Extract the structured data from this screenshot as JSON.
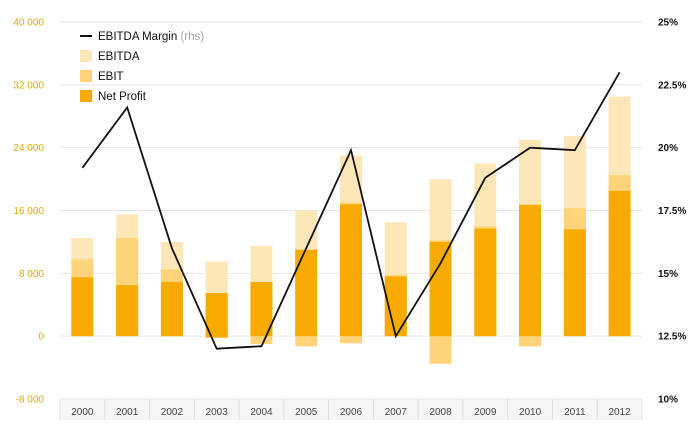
{
  "chart_data": {
    "type": "bar",
    "categories": [
      "2000",
      "2001",
      "2002",
      "2003",
      "2004",
      "2005",
      "2006",
      "2007",
      "2008",
      "2009",
      "2010",
      "2011",
      "2012"
    ],
    "series": [
      {
        "name": "EBITDA",
        "type": "stacked-bar-layer",
        "values": [
          12500,
          15500,
          12000,
          9500,
          11500,
          16000,
          23000,
          14500,
          20000,
          22000,
          25000,
          25500,
          30500
        ],
        "negative_values": [
          0,
          0,
          0,
          0,
          -1000,
          -1300,
          -900,
          0,
          -3500,
          0,
          -1300,
          0,
          0
        ],
        "color": "#fde7b8"
      },
      {
        "name": "EBIT",
        "type": "stacked-bar-layer",
        "values": [
          9800,
          12500,
          8500,
          5200,
          6400,
          11000,
          17000,
          7800,
          12200,
          14000,
          16800,
          16300,
          20500
        ],
        "negative_values": [
          0,
          0,
          0,
          0,
          -1000,
          -1300,
          -900,
          0,
          -3500,
          0,
          -1300,
          0,
          0
        ],
        "color": "#fdd47a"
      },
      {
        "name": "Net Profit",
        "type": "stacked-bar-layer",
        "values": [
          7500,
          6500,
          6900,
          5500,
          6900,
          11000,
          16800,
          7600,
          12000,
          13700,
          16700,
          13600,
          18500
        ],
        "negative_values": [
          0,
          0,
          0,
          -200,
          0,
          0,
          0,
          0,
          0,
          0,
          0,
          0,
          0
        ],
        "color": "#f7ab00"
      },
      {
        "name": "EBITDA Margin",
        "name_suffix": "(rhs)",
        "type": "line",
        "axis": "right",
        "values": [
          19.2,
          21.6,
          16.0,
          12.0,
          12.1,
          16.0,
          19.9,
          12.5,
          15.4,
          18.8,
          20.0,
          19.9,
          23.0
        ],
        "color": "#111111"
      }
    ],
    "y_left": {
      "ylim": [
        -8000,
        40000
      ],
      "ticks": [
        -8000,
        0,
        8000,
        16000,
        24000,
        32000,
        40000
      ],
      "tick_labels": [
        "-8 000",
        "0",
        "8 000",
        "16 000",
        "24 000",
        "32 000",
        "40 000"
      ],
      "label_color": "#e0a800"
    },
    "y_right": {
      "ylim": [
        10,
        25
      ],
      "ticks": [
        10,
        12.5,
        15,
        17.5,
        20,
        22.5,
        25
      ],
      "tick_labels": [
        "10%",
        "12.5%",
        "15%",
        "17.5%",
        "20%",
        "22.5%",
        "25%"
      ]
    },
    "grid": true,
    "legend_position": "top-left",
    "legend_entries": [
      "EBITDA Margin",
      "EBITDA",
      "EBIT",
      "Net Profit"
    ]
  }
}
